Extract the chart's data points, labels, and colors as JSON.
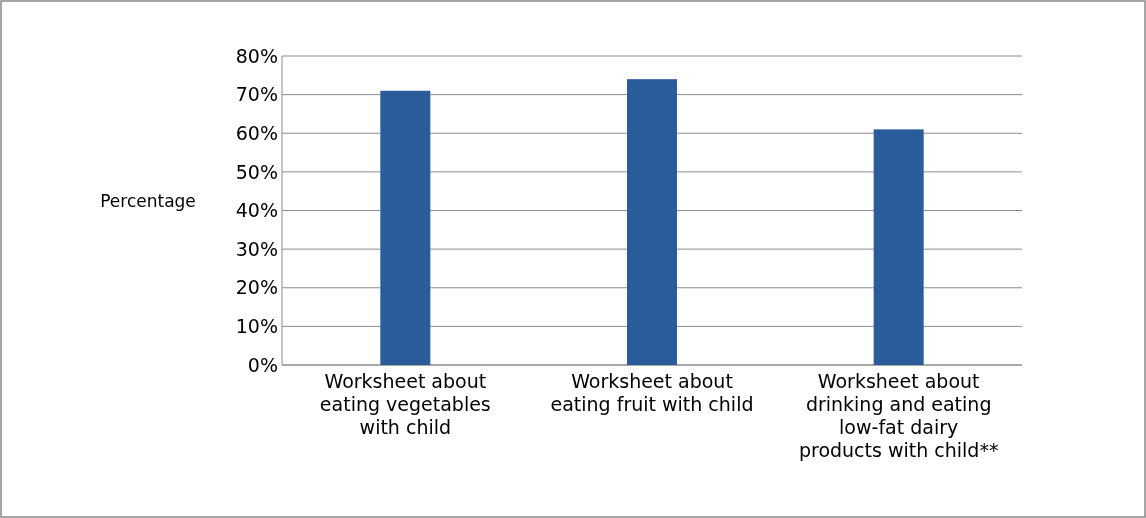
{
  "chart_data": {
    "type": "bar",
    "ylabel": "Percentage",
    "categories": [
      "Worksheet about eating vegetables with child",
      "Worksheet about eating fruit with child",
      "Worksheet about drinking and eating low-fat dairy products with child**"
    ],
    "values": [
      71,
      74,
      61
    ],
    "color": "#2a5b9b",
    "ylim": [
      0,
      80
    ],
    "yticks": [
      {
        "value": 0,
        "label": "0%"
      },
      {
        "value": 10,
        "label": "10%"
      },
      {
        "value": 20,
        "label": "20%"
      },
      {
        "value": 30,
        "label": "30%"
      },
      {
        "value": 40,
        "label": "40%"
      },
      {
        "value": 50,
        "label": "50%"
      },
      {
        "value": 60,
        "label": "60%"
      },
      {
        "value": 70,
        "label": "70%"
      },
      {
        "value": 80,
        "label": "80%"
      }
    ],
    "grid": "y"
  }
}
